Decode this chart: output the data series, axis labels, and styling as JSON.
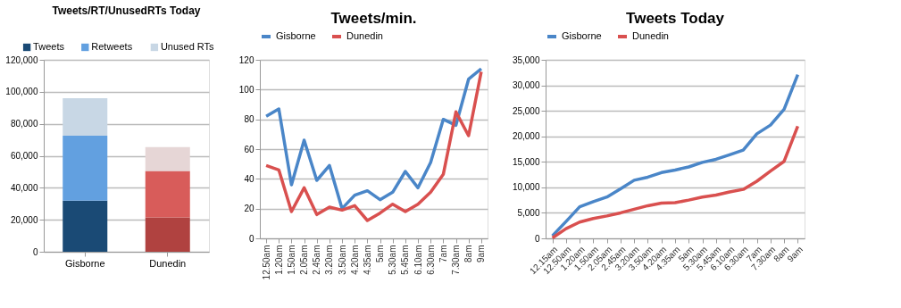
{
  "chart_data": [
    {
      "type": "bar",
      "title": "Tweets/RT/UnusedRTs Today",
      "categories": [
        "Gisborne",
        "Dunedin"
      ],
      "stacked": true,
      "legend": "top",
      "grid": "y",
      "ylim": [
        0,
        120000
      ],
      "yticks": [
        {
          "value": 0,
          "label": "0"
        },
        {
          "value": 20000,
          "label": "20,000"
        },
        {
          "value": 40000,
          "label": "40,000"
        },
        {
          "value": 60000,
          "label": "60,000"
        },
        {
          "value": 80000,
          "label": "80,000"
        },
        {
          "value": 100000,
          "label": "100,000"
        },
        {
          "value": 120000,
          "label": "120,000"
        }
      ],
      "series": [
        {
          "name": "Tweets",
          "color": "#1a4a75",
          "colors": [
            "#1a4a75",
            "#b04240"
          ],
          "values": [
            32000,
            21500
          ]
        },
        {
          "name": "Retweets",
          "color": "#62a0e0",
          "colors": [
            "#62a0e0",
            "#d85c5a"
          ],
          "values": [
            40500,
            29000
          ]
        },
        {
          "name": "Unused RTs",
          "color": "#c8d7e5",
          "colors": [
            "#c8d7e5",
            "#e6d6d6"
          ],
          "values": [
            23500,
            15000
          ]
        }
      ]
    },
    {
      "type": "line",
      "title": "Tweets/min.",
      "legend": "top",
      "grid": "y",
      "marker": "none",
      "line_style": "solid",
      "categories": [
        "12.50am",
        "1.20am",
        "1.50am",
        "2.05am",
        "2.45am",
        "3.20am",
        "3.50am",
        "4.20am",
        "4.35am",
        "5am",
        "5.30am",
        "5.45am",
        "6.10am",
        "6.30am",
        "7am",
        "7.30am",
        "8am",
        "9am"
      ],
      "ylim": [
        0,
        120
      ],
      "yticks": [
        0,
        20,
        40,
        60,
        80,
        100,
        120
      ],
      "series": [
        {
          "name": "Gisborne",
          "color": "#4a86c8",
          "values": [
            82,
            87,
            36,
            66,
            39,
            49,
            20,
            29,
            32,
            26,
            31,
            45,
            34,
            51,
            80,
            76,
            107,
            114
          ]
        },
        {
          "name": "Dunedin",
          "color": "#d9504f",
          "values": [
            49,
            46,
            18,
            34,
            16,
            21,
            19,
            22,
            12,
            17,
            23,
            18,
            23,
            31,
            43,
            85,
            69,
            112
          ]
        }
      ]
    },
    {
      "type": "line",
      "title": "Tweets Today",
      "legend": "top",
      "grid": "y",
      "marker": "none",
      "line_style": "solid",
      "categories": [
        "12.15am",
        "12.50am",
        "1.20am",
        "1.50am",
        "2.05am",
        "2.45am",
        "3.20am",
        "3.50am",
        "4.20am",
        "4.35am",
        "5am",
        "5.30am",
        "5.45am",
        "6.10am",
        "6.30am",
        "7am",
        "7.30am",
        "8am",
        "9am"
      ],
      "ylim": [
        0,
        35000
      ],
      "yticks": [
        {
          "value": 0,
          "label": "0"
        },
        {
          "value": 5000,
          "label": "5,000"
        },
        {
          "value": 10000,
          "label": "10,000"
        },
        {
          "value": 15000,
          "label": "15,000"
        },
        {
          "value": 20000,
          "label": "20,000"
        },
        {
          "value": 25000,
          "label": "25,000"
        },
        {
          "value": 30000,
          "label": "30,000"
        },
        {
          "value": 35000,
          "label": "35,000"
        }
      ],
      "series": [
        {
          "name": "Gisborne",
          "color": "#4a86c8",
          "values": [
            500,
            3300,
            6200,
            7200,
            8100,
            9700,
            11400,
            12000,
            12900,
            13400,
            14000,
            14900,
            15500,
            16400,
            17300,
            20500,
            22200,
            25300,
            32100
          ]
        },
        {
          "name": "Dunedin",
          "color": "#d9504f",
          "values": [
            100,
            1900,
            3200,
            3900,
            4400,
            5000,
            5700,
            6400,
            6900,
            7000,
            7500,
            8100,
            8500,
            9100,
            9600,
            11200,
            13200,
            15100,
            22000
          ]
        }
      ]
    }
  ]
}
